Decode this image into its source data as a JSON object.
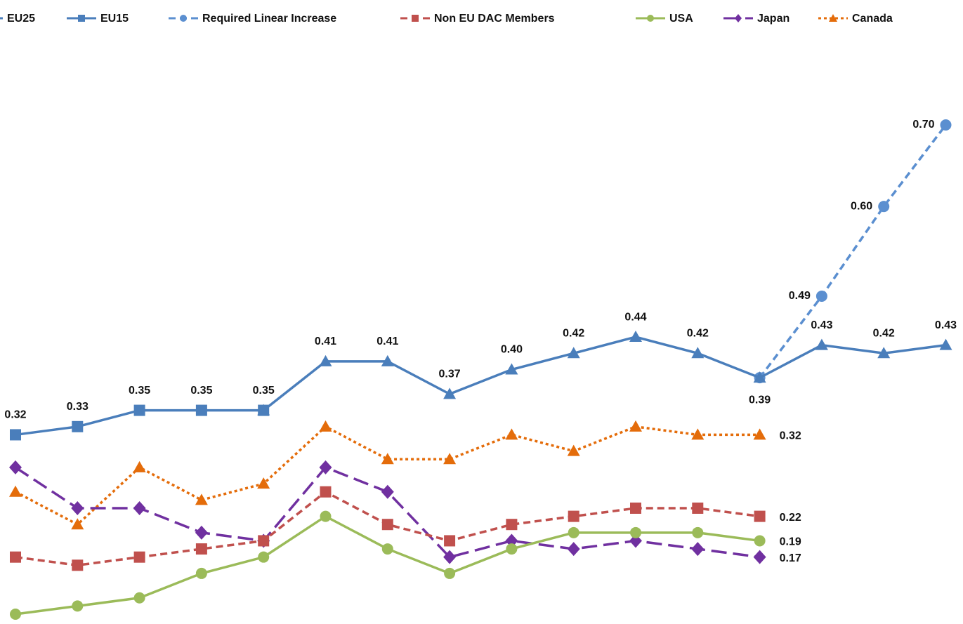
{
  "chart_data": {
    "type": "line",
    "categories": [
      null,
      null,
      null,
      null,
      null,
      null,
      null,
      null,
      null,
      null,
      null,
      null,
      null,
      null,
      null,
      null
    ],
    "series": [
      {
        "name": "EU25",
        "color": "#4a7ebb",
        "line_style": "solid",
        "marker": "triangle",
        "values": [
          null,
          null,
          null,
          null,
          0.35,
          0.41,
          0.41,
          0.37,
          0.4,
          0.42,
          0.44,
          0.42,
          0.39,
          0.43,
          0.42,
          0.43
        ],
        "value_labels": [
          null,
          null,
          null,
          null,
          null,
          "0.41",
          "0.41",
          "0.37",
          "0.40",
          "0.42",
          "0.44",
          "0.42",
          "0.39",
          "0.43",
          "0.42",
          "0.43"
        ]
      },
      {
        "name": "EU15",
        "color": "#4a7ebb",
        "line_style": "solid",
        "marker": "square",
        "values": [
          0.32,
          0.33,
          0.35,
          0.35,
          0.35,
          null,
          null,
          null,
          null,
          null,
          null,
          null,
          null,
          null,
          null,
          null
        ],
        "value_labels": [
          "0.32",
          "0.33",
          "0.35",
          "0.35",
          "0.35",
          null,
          null,
          null,
          null,
          null,
          null,
          null,
          null,
          null,
          null,
          null
        ]
      },
      {
        "name": "Required Linear Increase",
        "color": "#5b8fd0",
        "line_style": "dashed",
        "marker": "circle",
        "values": [
          null,
          null,
          null,
          null,
          null,
          null,
          null,
          null,
          null,
          null,
          null,
          null,
          0.39,
          0.49,
          0.6,
          0.7
        ],
        "value_labels": [
          null,
          null,
          null,
          null,
          null,
          null,
          null,
          null,
          null,
          null,
          null,
          null,
          null,
          "0.49",
          "0.60",
          "0.70"
        ]
      },
      {
        "name": "Non EU DAC Members",
        "color": "#c0504d",
        "line_style": "dashed",
        "marker": "square",
        "values": [
          0.17,
          0.16,
          0.17,
          0.18,
          0.19,
          0.25,
          0.21,
          0.19,
          0.21,
          0.22,
          0.23,
          0.23,
          0.22,
          null,
          null,
          null
        ],
        "value_labels": [
          null,
          null,
          null,
          null,
          null,
          null,
          null,
          null,
          null,
          null,
          null,
          null,
          "0.22",
          null,
          null,
          null
        ]
      },
      {
        "name": "USA",
        "color": "#9bbb59",
        "line_style": "solid",
        "marker": "circle",
        "values": [
          0.1,
          0.11,
          0.12,
          0.15,
          0.17,
          0.22,
          0.18,
          0.15,
          0.18,
          0.2,
          0.2,
          0.2,
          0.19,
          null,
          null,
          null
        ],
        "value_labels": [
          null,
          null,
          null,
          null,
          null,
          null,
          null,
          null,
          null,
          null,
          null,
          null,
          "0.19",
          null,
          null,
          null
        ]
      },
      {
        "name": "Japan",
        "color": "#7030a0",
        "line_style": "long-dash",
        "marker": "diamond",
        "values": [
          0.28,
          0.23,
          0.23,
          0.2,
          0.19,
          0.28,
          0.25,
          0.17,
          0.19,
          0.18,
          0.19,
          0.18,
          0.17,
          null,
          null,
          null
        ],
        "value_labels": [
          null,
          null,
          null,
          null,
          null,
          null,
          null,
          null,
          null,
          null,
          null,
          null,
          "0.17",
          null,
          null,
          null
        ]
      },
      {
        "name": "Canada",
        "color": "#e46c0a",
        "line_style": "dotted",
        "marker": "triangle",
        "values": [
          0.25,
          0.21,
          0.28,
          0.24,
          0.26,
          0.33,
          0.29,
          0.29,
          0.32,
          0.3,
          0.33,
          0.32,
          0.32,
          null,
          null,
          null
        ],
        "value_labels": [
          null,
          null,
          null,
          null,
          null,
          null,
          null,
          null,
          null,
          null,
          null,
          null,
          "0.32",
          null,
          null,
          null
        ]
      }
    ]
  }
}
